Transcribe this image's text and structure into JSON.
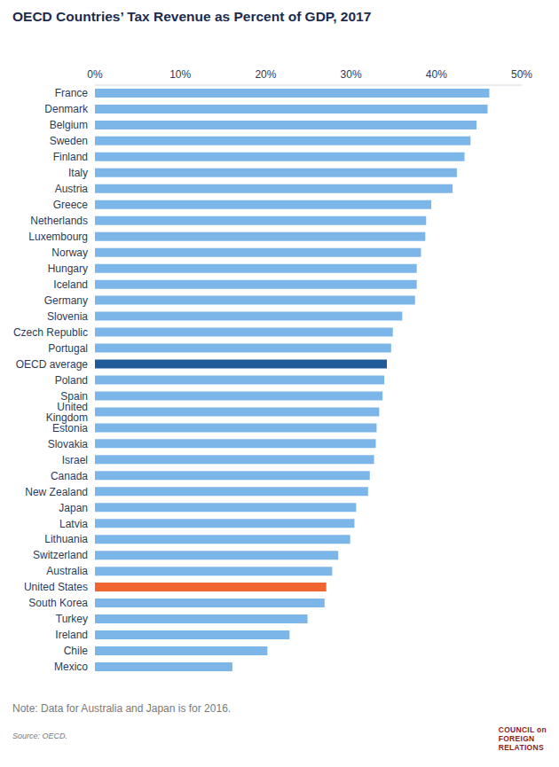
{
  "chart_data": {
    "type": "bar",
    "title": "OECD Countries’ Tax Revenue as Percent of GDP, 2017",
    "orientation": "horizontal",
    "categories": [
      "France",
      "Denmark",
      "Belgium",
      "Sweden",
      "Finland",
      "Italy",
      "Austria",
      "Greece",
      "Netherlands",
      "Luxembourg",
      "Norway",
      "Hungary",
      "Iceland",
      "Germany",
      "Slovenia",
      "Czech Republic",
      "Portugal",
      "OECD average",
      "Poland",
      "Spain",
      "United Kingdom",
      "Estonia",
      "Slovakia",
      "Israel",
      "Canada",
      "New Zealand",
      "Japan",
      "Latvia",
      "Lithuania",
      "Switzerland",
      "Australia",
      "United States",
      "South Korea",
      "Turkey",
      "Ireland",
      "Chile",
      "Mexico"
    ],
    "values": [
      46.2,
      46.0,
      44.7,
      44.0,
      43.3,
      42.4,
      41.9,
      39.4,
      38.8,
      38.7,
      38.2,
      37.7,
      37.7,
      37.5,
      36.0,
      34.9,
      34.7,
      34.2,
      33.9,
      33.7,
      33.3,
      33.0,
      32.9,
      32.7,
      32.2,
      32.0,
      30.6,
      30.4,
      29.9,
      28.5,
      27.8,
      27.1,
      26.9,
      24.9,
      22.8,
      20.2,
      16.1
    ],
    "colors": [
      "#7cb5e8",
      "#7cb5e8",
      "#7cb5e8",
      "#7cb5e8",
      "#7cb5e8",
      "#7cb5e8",
      "#7cb5e8",
      "#7cb5e8",
      "#7cb5e8",
      "#7cb5e8",
      "#7cb5e8",
      "#7cb5e8",
      "#7cb5e8",
      "#7cb5e8",
      "#7cb5e8",
      "#7cb5e8",
      "#7cb5e8",
      "#1f5b98",
      "#7cb5e8",
      "#7cb5e8",
      "#7cb5e8",
      "#7cb5e8",
      "#7cb5e8",
      "#7cb5e8",
      "#7cb5e8",
      "#7cb5e8",
      "#7cb5e8",
      "#7cb5e8",
      "#7cb5e8",
      "#7cb5e8",
      "#7cb5e8",
      "#f0652f",
      "#7cb5e8",
      "#7cb5e8",
      "#7cb5e8",
      "#7cb5e8",
      "#7cb5e8"
    ],
    "xlim": [
      0,
      50
    ],
    "xticks": [
      {
        "value": 0,
        "label": "0%"
      },
      {
        "value": 10,
        "label": "10%"
      },
      {
        "value": 20,
        "label": "20%"
      },
      {
        "value": 30,
        "label": "30%"
      },
      {
        "value": 40,
        "label": "40%"
      },
      {
        "value": 50,
        "label": "50%"
      }
    ],
    "grid": false,
    "note": "Note: Data for Australia and Japan is for 2016.",
    "source": "Source: OECD.",
    "logo": [
      "COUNCIL on",
      "FOREIGN",
      "RELATIONS"
    ]
  }
}
